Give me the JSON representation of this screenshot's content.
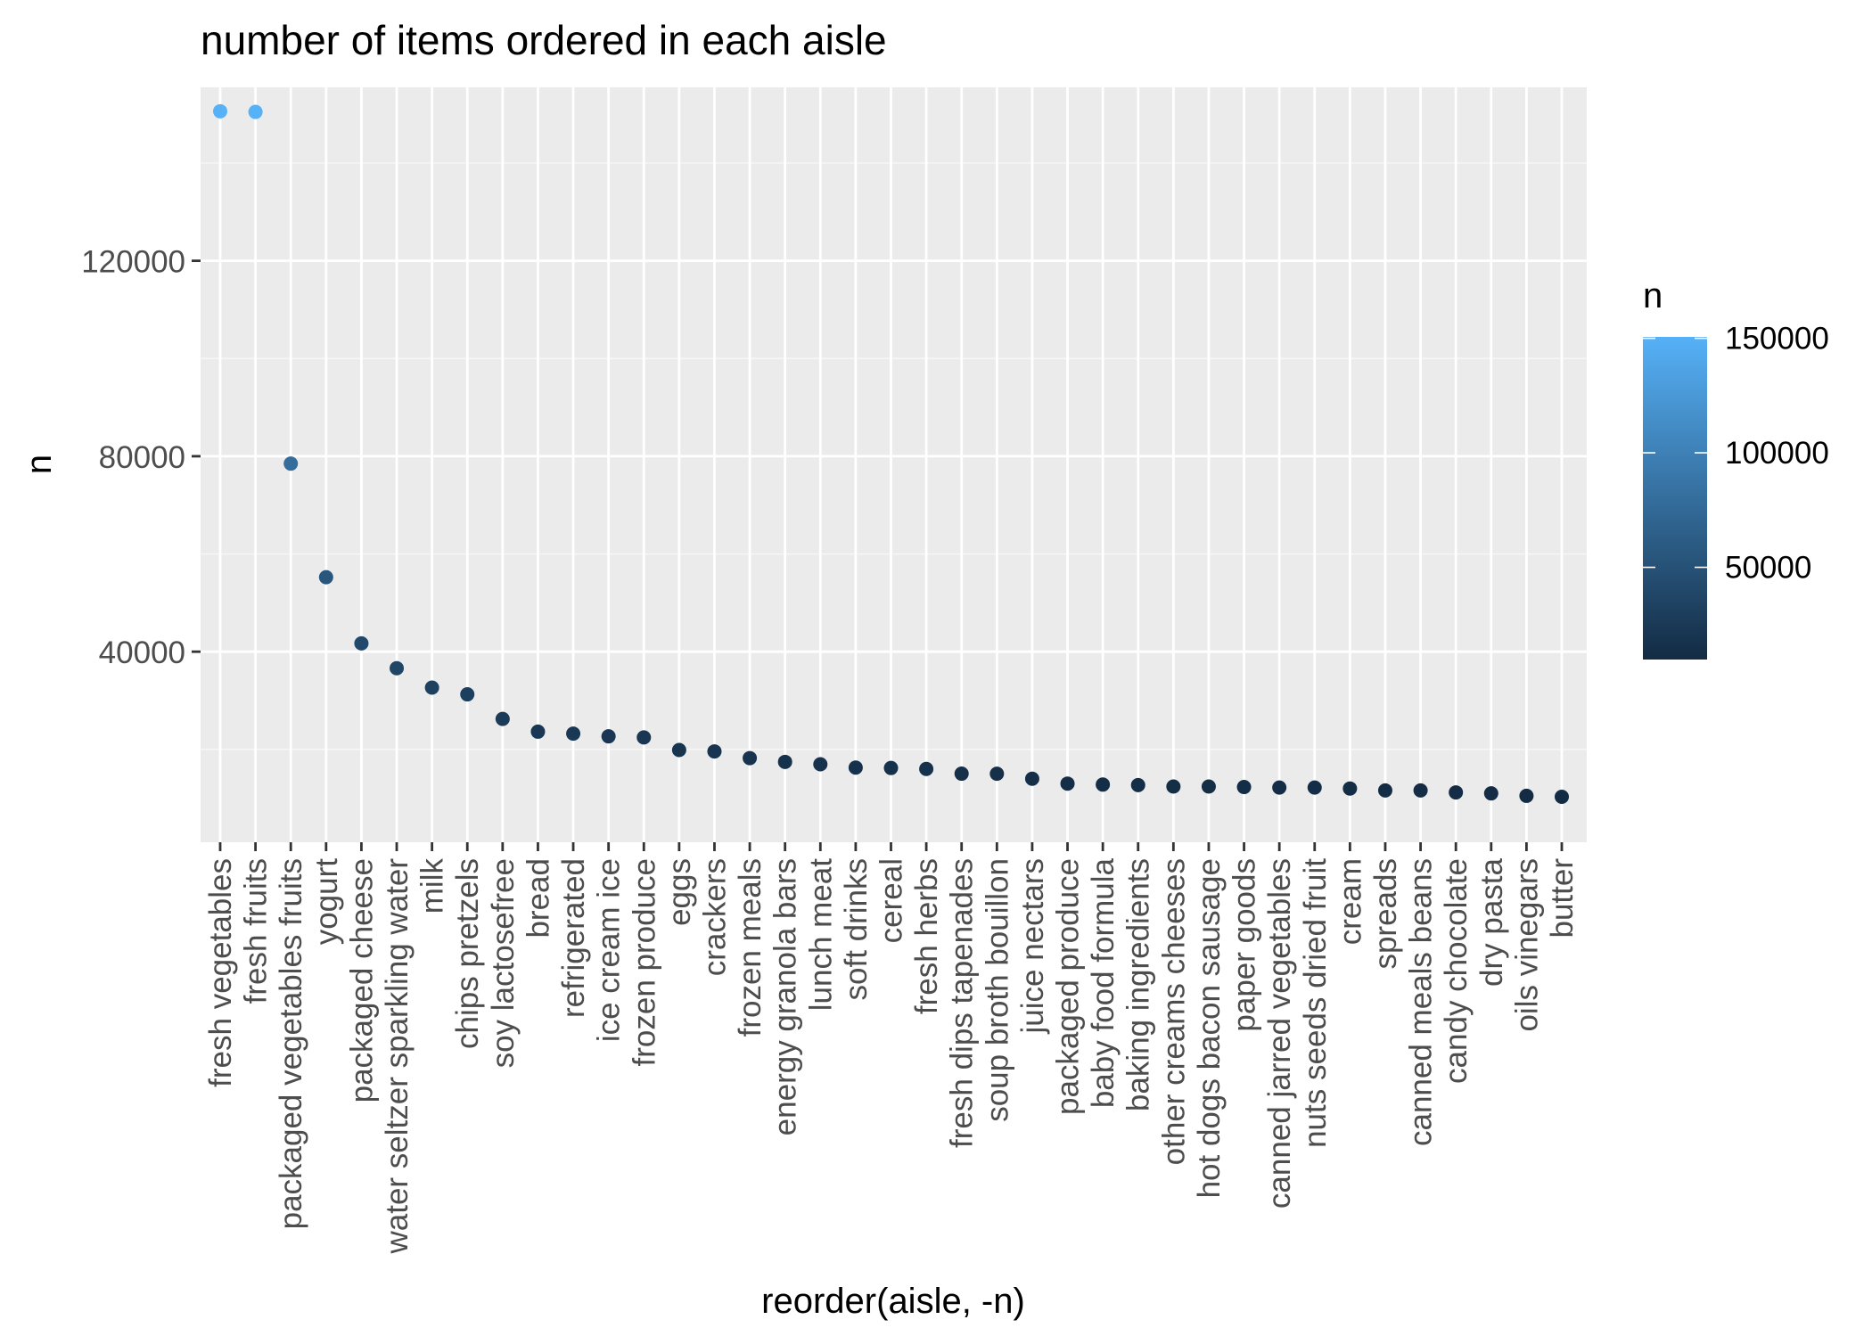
{
  "chart_data": {
    "type": "scatter",
    "title": "number of items ordered in each aisle",
    "xlabel": "reorder(aisle, -n)",
    "ylabel": "n",
    "ylim": [
      1000,
      155500
    ],
    "yticks": [
      40000,
      80000,
      120000
    ],
    "grid": true,
    "legend": {
      "title": "n",
      "type": "colorbar",
      "position": "right",
      "ticks": [
        50000,
        100000,
        150000
      ],
      "range": [
        9736,
        150609
      ],
      "low_color": "#132B43",
      "high_color": "#56B1F7"
    },
    "categories": [
      "fresh vegetables",
      "fresh fruits",
      "packaged vegetables fruits",
      "yogurt",
      "packaged cheese",
      "water seltzer sparkling water",
      "milk",
      "chips pretzels",
      "soy lactosefree",
      "bread",
      "refrigerated",
      "ice cream ice",
      "frozen produce",
      "eggs",
      "crackers",
      "frozen meals",
      "energy granola bars",
      "lunch meat",
      "soft drinks",
      "cereal",
      "fresh herbs",
      "fresh dips tapenades",
      "soup broth bouillon",
      "juice nectars",
      "packaged produce",
      "baby food formula",
      "baking ingredients",
      "other creams cheeses",
      "hot dogs bacon sausage",
      "paper goods",
      "canned jarred vegetables",
      "nuts seeds dried fruit",
      "cream",
      "spreads",
      "canned meals beans",
      "candy chocolate",
      "dry pasta",
      "oils vinegars",
      "butter"
    ],
    "values": [
      150609,
      150473,
      78493,
      55240,
      41699,
      36617,
      32644,
      31269,
      26240,
      23635,
      23228,
      22676,
      22453,
      19875,
      19592,
      18221,
      17449,
      16957,
      16279,
      16201,
      16000,
      15038,
      15019,
      14000,
      13000,
      12800,
      12700,
      12400,
      12400,
      12300,
      12200,
      12200,
      12000,
      11600,
      11600,
      11200,
      11000,
      10500,
      10300
    ]
  }
}
